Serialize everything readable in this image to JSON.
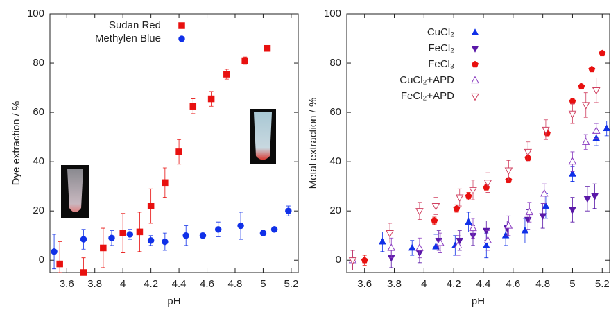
{
  "chart_data": [
    {
      "type": "scatter",
      "x_label": "pH",
      "y_label": "Dye extraction / %",
      "xlim": [
        3.48,
        5.25
      ],
      "ylim": [
        -5,
        100
      ],
      "xticks": [
        3.6,
        3.8,
        4,
        4.2,
        4.4,
        4.6,
        4.8,
        5,
        5.2
      ],
      "yticks": [
        0,
        20,
        40,
        60,
        80,
        100
      ],
      "legend": "upper-left",
      "series": [
        {
          "name": "Sudan Red",
          "color": "#e8100f",
          "marker": "square",
          "filled": true,
          "x": [
            3.55,
            3.72,
            3.86,
            4.0,
            4.12,
            4.2,
            4.3,
            4.4,
            4.5,
            4.63,
            4.74,
            4.87,
            5.03
          ],
          "values": [
            -1.5,
            -5,
            5,
            11,
            11.5,
            22,
            31.5,
            44,
            62.5,
            65.5,
            75.5,
            81,
            86
          ],
          "errors": [
            9,
            6,
            8,
            8,
            8,
            7,
            6,
            5,
            3,
            3,
            2,
            1.5,
            1
          ]
        },
        {
          "name": "Methylen Blue",
          "color": "#1030e8",
          "marker": "circle",
          "filled": true,
          "x": [
            3.51,
            3.72,
            3.92,
            4.05,
            4.2,
            4.3,
            4.45,
            4.57,
            4.68,
            4.84,
            5.0,
            5.08,
            5.18
          ],
          "values": [
            3.5,
            8.5,
            9,
            10.5,
            8,
            7.5,
            10,
            10,
            12.5,
            14,
            11,
            12.5,
            20
          ],
          "errors": [
            7,
            4,
            3,
            2,
            2,
            3.5,
            4,
            1,
            3,
            5.5,
            1,
            1,
            2
          ]
        }
      ]
    },
    {
      "type": "scatter",
      "x_label": "pH",
      "y_label": "Metal extraction / %",
      "xlim": [
        3.48,
        5.25
      ],
      "ylim": [
        -5,
        100
      ],
      "xticks": [
        3.6,
        3.8,
        4,
        4.2,
        4.4,
        4.6,
        4.8,
        5,
        5.2
      ],
      "yticks": [
        0,
        20,
        40,
        60,
        80,
        100
      ],
      "legend": "upper-left",
      "series": [
        {
          "name": "CuCl₂",
          "color": "#1030e8",
          "marker": "triangle-up",
          "filled": true,
          "x": [
            3.52,
            3.72,
            3.92,
            4.08,
            4.21,
            4.3,
            4.42,
            4.55,
            4.68,
            4.82,
            5.0,
            5.16,
            5.23
          ],
          "values": [
            0,
            7.5,
            5,
            5.5,
            6,
            15.5,
            6,
            10,
            12,
            22,
            35,
            49.5,
            53.5
          ],
          "errors": [
            4,
            4,
            3,
            5,
            4,
            4,
            5,
            4,
            5,
            5,
            3,
            3,
            3
          ]
        },
        {
          "name": "FeCl₂",
          "color": "#5a18a8",
          "marker": "triangle-down",
          "filled": true,
          "x": [
            3.52,
            3.78,
            3.97,
            4.1,
            4.24,
            4.33,
            4.42,
            4.56,
            4.7,
            4.8,
            5.0,
            5.1,
            5.15
          ],
          "values": [
            0,
            1,
            3,
            8,
            8,
            10,
            12,
            13,
            16.5,
            18,
            20.5,
            25,
            26
          ],
          "errors": [
            4,
            4,
            4,
            4,
            4,
            4,
            4,
            3,
            4,
            5,
            5,
            5,
            5
          ]
        },
        {
          "name": "FeCl₃",
          "color": "#e8100f",
          "marker": "pentagon",
          "filled": true,
          "x": [
            3.6,
            4.07,
            4.22,
            4.3,
            4.42,
            4.57,
            4.7,
            4.83,
            5.0,
            5.06,
            5.13,
            5.2
          ],
          "values": [
            0,
            16,
            21,
            26,
            29.5,
            32.5,
            41.5,
            51.5,
            64.5,
            70.5,
            77.5,
            84
          ],
          "errors": [
            2,
            1.5,
            1.5,
            1.5,
            1,
            1,
            1,
            1,
            1,
            1,
            1,
            1
          ]
        },
        {
          "name": "CuCl₂+APD",
          "color": "#8a3cc0",
          "marker": "triangle-up",
          "filled": false,
          "x": [
            3.52,
            3.78,
            3.97,
            4.11,
            4.23,
            4.33,
            4.43,
            4.57,
            4.71,
            4.81,
            5.0,
            5.09,
            5.16
          ],
          "values": [
            0,
            5,
            5,
            7,
            6,
            13,
            8,
            14,
            19.5,
            27,
            40,
            48,
            52.5
          ],
          "errors": [
            4,
            4,
            4,
            4,
            4,
            4,
            4,
            4,
            4,
            4,
            4,
            3,
            3
          ]
        },
        {
          "name": "FeCl₂+APD",
          "color": "#d04060",
          "marker": "triangle-down",
          "filled": false,
          "x": [
            3.52,
            3.77,
            3.97,
            4.08,
            4.24,
            4.33,
            4.43,
            4.57,
            4.7,
            4.82,
            5.0,
            5.09,
            5.16
          ],
          "values": [
            0,
            11,
            20,
            22,
            25.5,
            28.5,
            31.5,
            36.5,
            44,
            53,
            59.5,
            63,
            69
          ],
          "errors": [
            4,
            4,
            3.5,
            3.5,
            3.5,
            4,
            4,
            4,
            4,
            4,
            4,
            5,
            5
          ]
        }
      ]
    }
  ]
}
